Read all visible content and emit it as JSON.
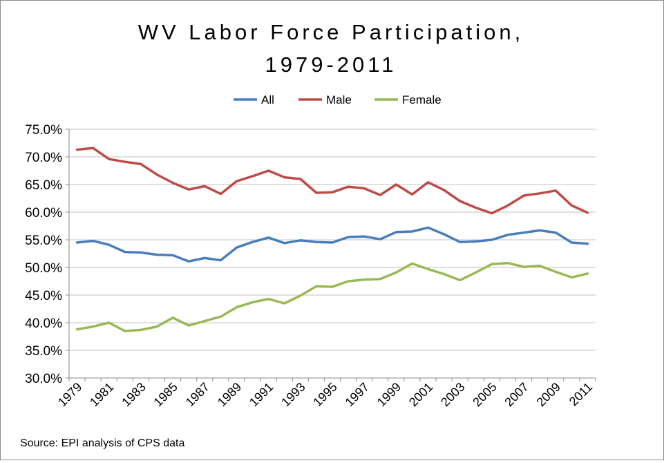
{
  "chart_data": {
    "type": "line",
    "title_lines": [
      "WV Labor Force Participation,",
      "1979-2011"
    ],
    "source": "Source: EPI analysis of CPS data",
    "x": [
      1979,
      1980,
      1981,
      1982,
      1983,
      1984,
      1985,
      1986,
      1987,
      1988,
      1989,
      1990,
      1991,
      1992,
      1993,
      1994,
      1995,
      1996,
      1997,
      1998,
      1999,
      2000,
      2001,
      2002,
      2003,
      2004,
      2005,
      2006,
      2007,
      2008,
      2009,
      2010,
      2011
    ],
    "x_tick_labels": [
      "1979",
      "1981",
      "1983",
      "1985",
      "1987",
      "1989",
      "1991",
      "1993",
      "1995",
      "1997",
      "1999",
      "2001",
      "2003",
      "2005",
      "2007",
      "2009",
      "2011"
    ],
    "ylim": [
      30,
      75
    ],
    "y_tick_labels": [
      "30.0%",
      "35.0%",
      "40.0%",
      "45.0%",
      "50.0%",
      "55.0%",
      "60.0%",
      "65.0%",
      "70.0%",
      "75.0%"
    ],
    "y_tick_values": [
      30,
      35,
      40,
      45,
      50,
      55,
      60,
      65,
      70,
      75
    ],
    "grid": "horizontal",
    "legend_position": "top",
    "series": [
      {
        "name": "All",
        "color": "#4a7ebb",
        "values": [
          54.5,
          54.8,
          54.1,
          52.8,
          52.7,
          52.3,
          52.2,
          51.1,
          51.7,
          51.3,
          53.6,
          54.6,
          55.4,
          54.4,
          54.9,
          54.6,
          54.5,
          55.5,
          55.6,
          55.1,
          56.4,
          56.5,
          57.2,
          56.0,
          54.6,
          54.7,
          55.0,
          55.9,
          56.3,
          56.7,
          56.3,
          54.5,
          54.3
        ]
      },
      {
        "name": "Male",
        "color": "#be4b48",
        "values": [
          71.3,
          71.6,
          69.6,
          69.1,
          68.7,
          66.8,
          65.3,
          64.1,
          64.7,
          63.3,
          65.6,
          66.5,
          67.5,
          66.3,
          66.0,
          63.5,
          63.6,
          64.6,
          64.3,
          63.1,
          65.0,
          63.2,
          65.4,
          64.0,
          62.0,
          60.8,
          59.8,
          61.2,
          63.0,
          63.4,
          63.9,
          61.2,
          59.9
        ]
      },
      {
        "name": "Female",
        "color": "#98b954",
        "values": [
          38.8,
          39.3,
          40.0,
          38.5,
          38.7,
          39.3,
          40.9,
          39.5,
          40.3,
          41.1,
          42.8,
          43.7,
          44.3,
          43.5,
          44.9,
          46.6,
          46.5,
          47.5,
          47.8,
          47.9,
          49.1,
          50.7,
          49.7,
          48.8,
          47.7,
          49.1,
          50.6,
          50.8,
          50.1,
          50.3,
          49.2,
          48.2,
          48.9
        ]
      }
    ]
  }
}
